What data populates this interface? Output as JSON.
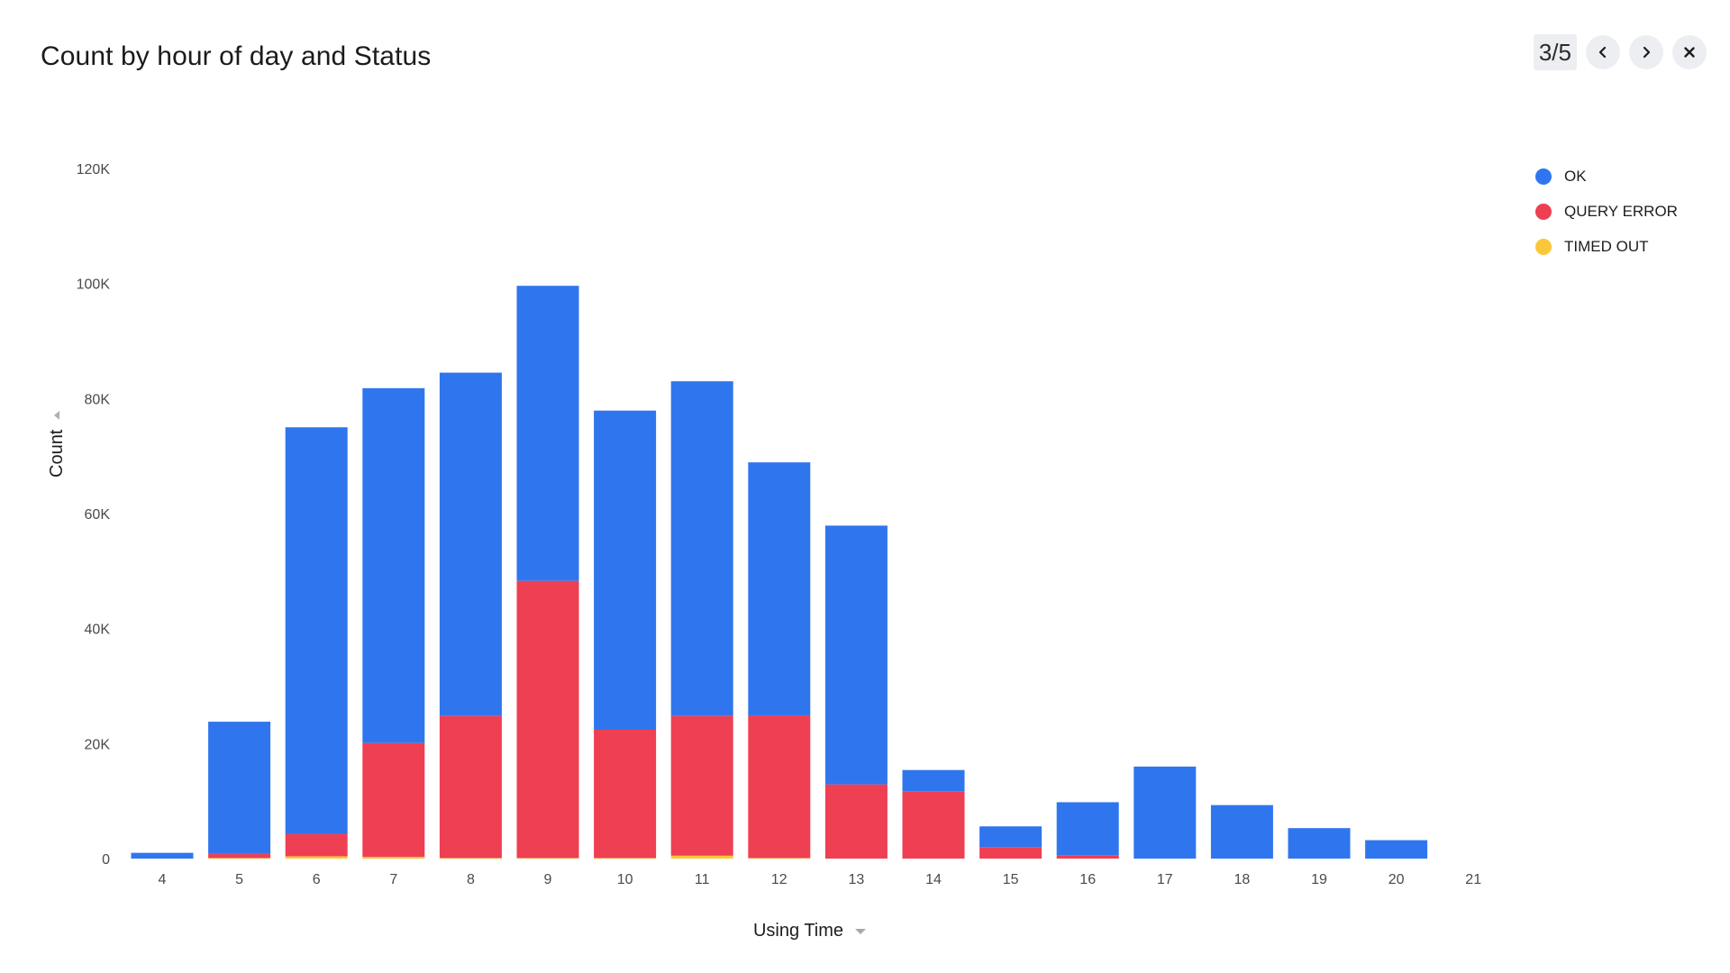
{
  "title": "Count by hour of day and Status",
  "pager": {
    "label": "3/5"
  },
  "icons": {
    "prev": "chevron-left-icon",
    "next": "chevron-right-icon",
    "close": "close-icon",
    "ydrop": "caret-right-icon",
    "xdrop": "caret-down-icon"
  },
  "colors": {
    "OK": "#2f76ee",
    "QUERY ERROR": "#ef3f52",
    "TIMED OUT": "#fbc73a"
  },
  "chart_data": {
    "type": "bar",
    "stacked": true,
    "title": "Count by hour of day and Status",
    "xlabel": "Using Time",
    "ylabel": "Count",
    "ylim": [
      0,
      120000
    ],
    "yticks": [
      0,
      20000,
      40000,
      60000,
      80000,
      100000,
      120000
    ],
    "ytick_labels": [
      "0",
      "20K",
      "40K",
      "60K",
      "80K",
      "100K",
      "120K"
    ],
    "categories": [
      "4",
      "5",
      "6",
      "7",
      "8",
      "9",
      "10",
      "11",
      "12",
      "13",
      "14",
      "15",
      "16",
      "17",
      "18",
      "19",
      "20",
      "21"
    ],
    "legend_position": "top-right",
    "grid": false,
    "series": [
      {
        "name": "TIMED OUT",
        "values": [
          0,
          100,
          400,
          300,
          100,
          100,
          100,
          500,
          100,
          0,
          0,
          0,
          0,
          0,
          0,
          0,
          0,
          0
        ]
      },
      {
        "name": "QUERY ERROR",
        "values": [
          0,
          700,
          3900,
          19800,
          24700,
          48200,
          22300,
          24300,
          24800,
          12900,
          11700,
          2000,
          600,
          0,
          0,
          0,
          0,
          0
        ]
      },
      {
        "name": "OK",
        "values": [
          1000,
          23000,
          70700,
          61700,
          59700,
          51300,
          55500,
          58200,
          44000,
          45000,
          3700,
          3600,
          9200,
          16000,
          9300,
          5300,
          3200,
          0
        ]
      }
    ],
    "legend": [
      "OK",
      "QUERY ERROR",
      "TIMED OUT"
    ]
  }
}
